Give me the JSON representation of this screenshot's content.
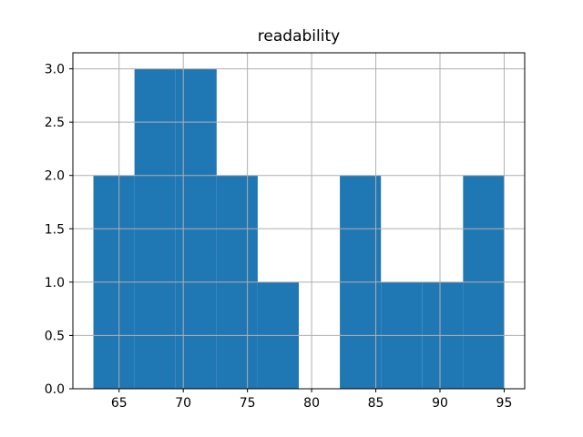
{
  "chart_data": {
    "type": "bar",
    "subtype": "histogram",
    "title": "readability",
    "bin_edges": [
      63.0,
      66.2,
      69.4,
      72.6,
      75.8,
      79.0,
      82.2,
      85.4,
      88.6,
      91.8,
      95.0
    ],
    "counts": [
      2,
      3,
      3,
      2,
      1,
      0,
      2,
      1,
      1,
      2
    ],
    "xlabel": "",
    "ylabel": "",
    "xlim": [
      61.4,
      96.6
    ],
    "ylim": [
      0,
      3.15
    ],
    "xticks": {
      "values": [
        65,
        70,
        75,
        80,
        85,
        90,
        95
      ],
      "labels": [
        "65",
        "70",
        "75",
        "80",
        "85",
        "90",
        "95"
      ]
    },
    "yticks": {
      "values": [
        0,
        0.5,
        1.0,
        1.5,
        2.0,
        2.5,
        3.0
      ],
      "labels": [
        "0.0",
        "0.5",
        "1.0",
        "1.5",
        "2.0",
        "2.5",
        "3.0"
      ]
    },
    "grid": true,
    "grid_over_bars": true,
    "legend": "none",
    "colors": {
      "bar": "#1f77b4",
      "grid": "#b0b0b0",
      "frame": "#000000",
      "text": "#000000",
      "background": "#ffffff"
    }
  }
}
